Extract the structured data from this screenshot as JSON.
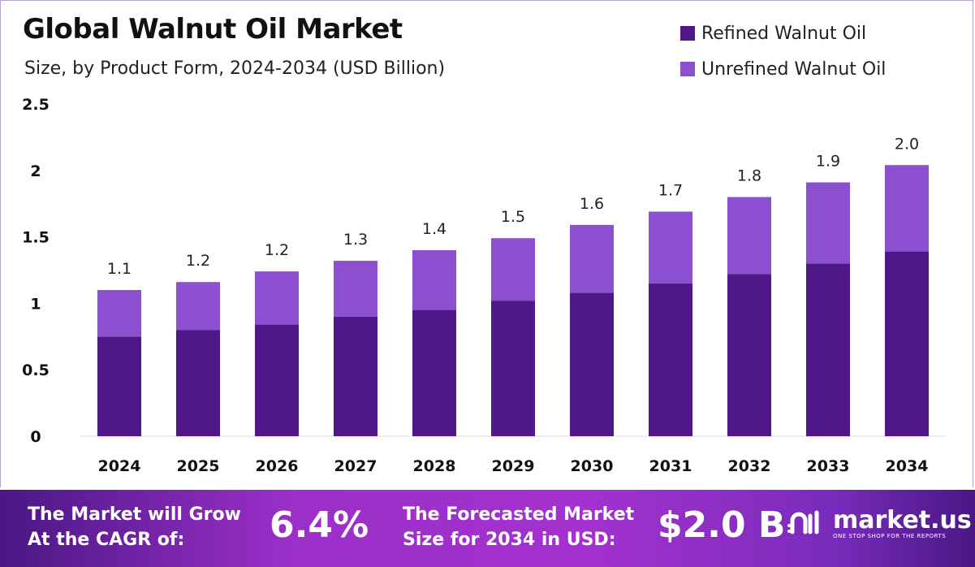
{
  "chart_data": {
    "type": "bar",
    "stacked": true,
    "title": "Global Walnut Oil Market",
    "subtitle": "Size, by Product Form, 2024-2034 (USD Billion)",
    "categories": [
      "2024",
      "2025",
      "2026",
      "2027",
      "2028",
      "2029",
      "2030",
      "2031",
      "2032",
      "2033",
      "2034"
    ],
    "series": [
      {
        "name": "Refined Walnut Oil",
        "color": "#4f1787",
        "values": [
          0.75,
          0.8,
          0.84,
          0.9,
          0.95,
          1.02,
          1.08,
          1.15,
          1.22,
          1.3,
          1.39
        ]
      },
      {
        "name": "Unrefined Walnut Oil",
        "color": "#8b4fcf",
        "values": [
          0.35,
          0.36,
          0.4,
          0.42,
          0.45,
          0.47,
          0.51,
          0.54,
          0.58,
          0.61,
          0.65
        ]
      }
    ],
    "total_labels": [
      "1.1",
      "1.2",
      "1.2",
      "1.3",
      "1.4",
      "1.5",
      "1.6",
      "1.7",
      "1.8",
      "1.9",
      "2.0"
    ],
    "y_ticks": [
      "0",
      "0.5",
      "1",
      "1.5",
      "2",
      "2.5"
    ],
    "ylim": [
      0,
      2.5
    ],
    "grid": false,
    "legend_position": "top-right"
  },
  "footer": {
    "cagr_label_1": "The Market will Grow",
    "cagr_label_2": "At the CAGR of:",
    "cagr_value": "6.4%",
    "forecast_label_1": "The Forecasted Market",
    "forecast_label_2": "Size for 2034 in USD:",
    "forecast_value": "$2.0 B",
    "brand": "market.us",
    "tagline": "ONE STOP SHOP FOR THE REPORTS"
  }
}
